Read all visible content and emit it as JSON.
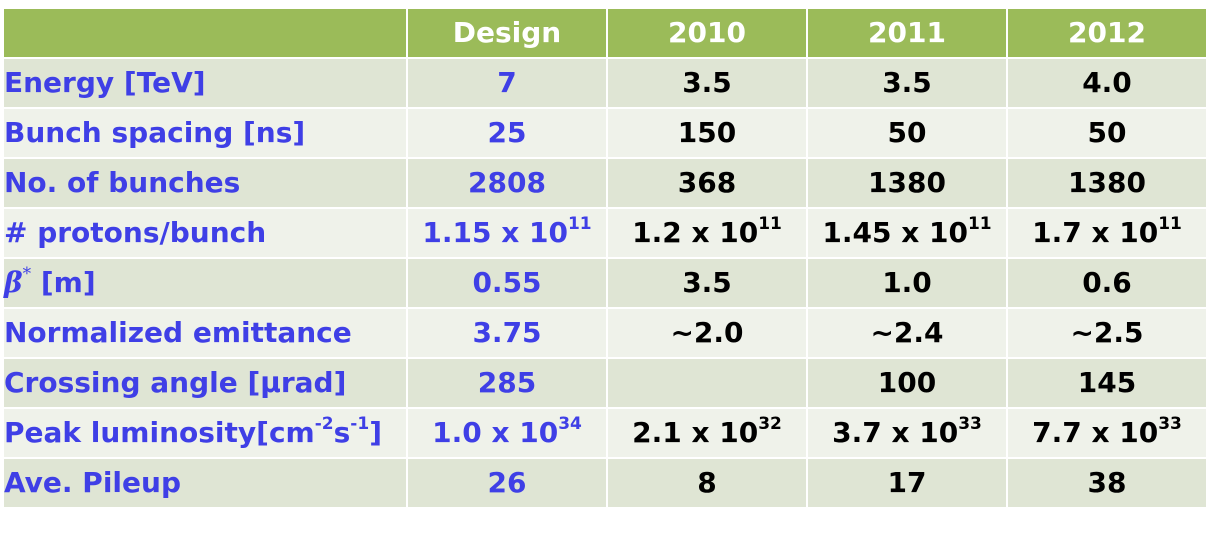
{
  "columns": [
    "",
    "Design",
    "2010",
    "2011",
    "2012"
  ],
  "rows": [
    {
      "label": "Energy [TeV]",
      "design": "7",
      "y2010": "3.5",
      "y2011": "3.5",
      "y2012": "4.0"
    },
    {
      "label": "Bunch spacing [ns]",
      "design": "25",
      "y2010": "150",
      "y2011": "50",
      "y2012": "50"
    },
    {
      "label": "No. of bunches",
      "design": "2808",
      "y2010": "368",
      "y2011": "1380",
      "y2012": "1380"
    },
    {
      "label": "# protons/bunch",
      "design_base": "1.15 x 10",
      "design_exp": "11",
      "y2010_base": "1.2 x 10",
      "y2010_exp": "11",
      "y2011_base": "1.45 x 10",
      "y2011_exp": "11",
      "y2012_base": "1.7 x 10",
      "y2012_exp": "11"
    },
    {
      "label_symbol": "β",
      "label_symbol_sup": "*",
      "label_unit": " [m]",
      "design": "0.55",
      "y2010": "3.5",
      "y2011": "1.0",
      "y2012": "0.6"
    },
    {
      "label": "Normalized emittance",
      "design": "3.75",
      "y2010": "~2.0",
      "y2011": "~2.4",
      "y2012": "~2.5"
    },
    {
      "label": "Crossing angle [μrad]",
      "design": "285",
      "y2010": "",
      "y2011": "100",
      "y2012": "145"
    },
    {
      "label_a": "Peak luminosity[cm",
      "label_exp1": "-2",
      "label_b": "s",
      "label_exp2": "-1",
      "label_c": "]",
      "design_base": "1.0 x 10",
      "design_exp": "34",
      "y2010_base": "2.1 x 10",
      "y2010_exp": "32",
      "y2011_base": "3.7 x 10",
      "y2011_exp": "33",
      "y2012_base": "7.7 x 10",
      "y2012_exp": "33"
    },
    {
      "label": "Ave. Pileup",
      "design": "26",
      "y2010": "8",
      "y2011": "17",
      "y2012": "38"
    }
  ],
  "colors": {
    "header_bg": "#9bbb59",
    "header_text": "#ffffff",
    "row_odd": "#dfe5d4",
    "row_even": "#eff2ea",
    "label_text": "#3f3fe6",
    "value_text": "#000000"
  }
}
